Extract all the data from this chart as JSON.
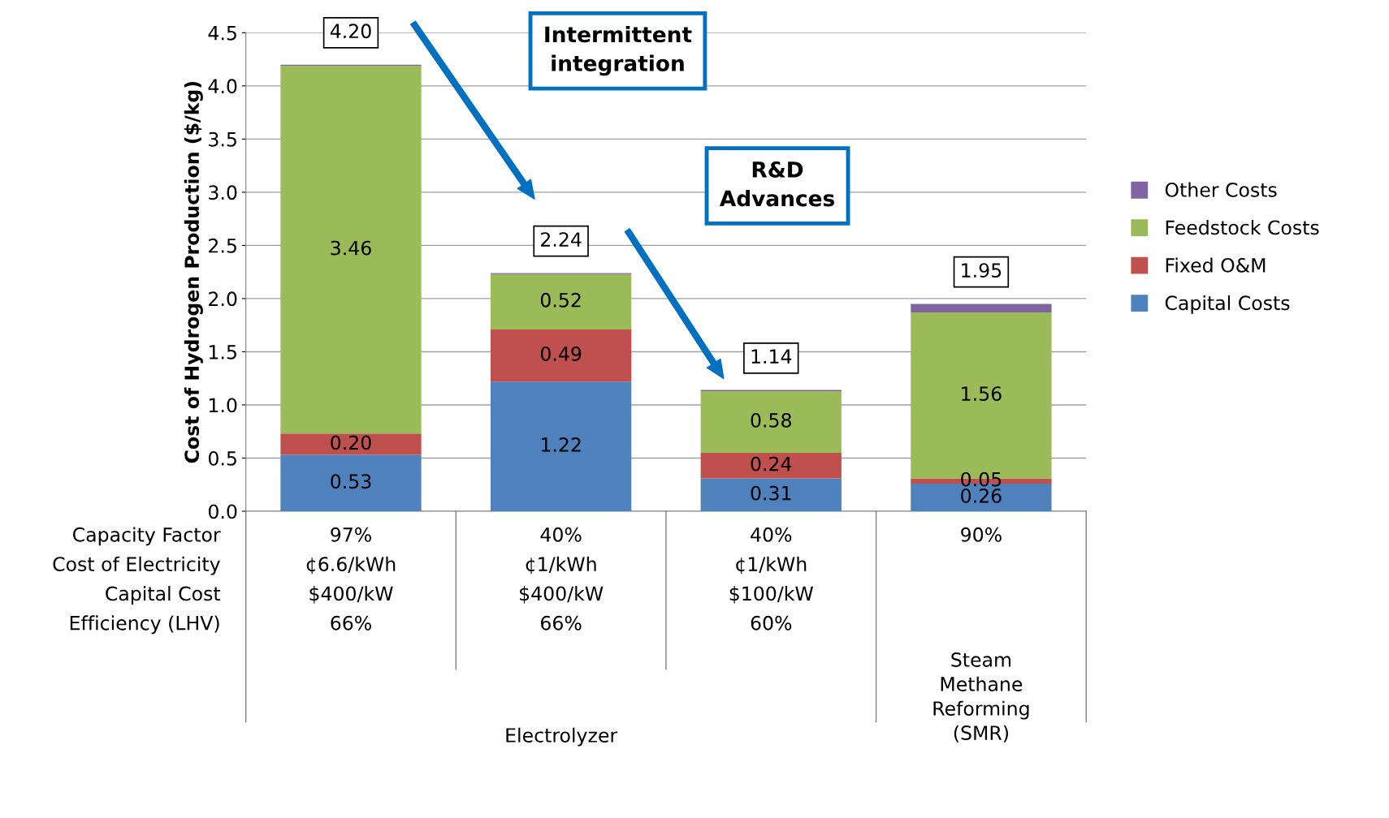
{
  "chart_data": {
    "type": "bar",
    "stacked": true,
    "ylabel": "Cost of Hydrogen Production ($/kg)",
    "categories": [
      "97%\n¢6.6/kWh\n$400/kW\n66%",
      "40%\n¢1/kWh\n$400/kW\n66%",
      "40%\n¢1/kWh\n$100/kW\n60%",
      "90%"
    ],
    "series": [
      {
        "name": "Capital Costs",
        "color": "#4f81bd",
        "values": [
          0.53,
          1.22,
          0.31,
          0.26
        ],
        "value_labels": [
          "0.53",
          "1.22",
          "0.31",
          "0.26"
        ]
      },
      {
        "name": "Fixed O&M",
        "color": "#c0504d",
        "values": [
          0.2,
          0.49,
          0.24,
          0.05
        ],
        "value_labels": [
          "0.20",
          "0.49",
          "0.24",
          "0.05"
        ]
      },
      {
        "name": "Feedstock Costs",
        "color": "#9bbb59",
        "values": [
          3.46,
          0.52,
          0.58,
          1.56
        ],
        "value_labels": [
          "3.46",
          "0.52",
          "0.58",
          "1.56"
        ]
      },
      {
        "name": "Other Costs",
        "color": "#8064a2",
        "values": [
          0.01,
          0.01,
          0.01,
          0.08
        ]
      }
    ],
    "totals": [
      "4.20",
      "2.24",
      "1.14",
      "1.95"
    ],
    "ylim": [
      0,
      4.5
    ],
    "yticks": [
      {
        "value": 0,
        "label": "0.0"
      },
      {
        "value": 0.5,
        "label": "0.5"
      },
      {
        "value": 1,
        "label": "1.0"
      },
      {
        "value": 1.5,
        "label": "1.5"
      },
      {
        "value": 2,
        "label": "2.0"
      },
      {
        "value": 2.5,
        "label": "2.5"
      },
      {
        "value": 3,
        "label": "3.0"
      },
      {
        "value": 3.5,
        "label": "3.5"
      },
      {
        "value": 4,
        "label": "4.0"
      },
      {
        "value": 4.5,
        "label": "4.5"
      }
    ],
    "grid": "y",
    "legend": "right",
    "annotations": [
      "Capacity Factor\nCost of Electricity\nCapital Cost\nEfficiency (LHV)",
      "Electrolyzer",
      "Steam\nMethane\nReforming\n(SMR)",
      "Intermittent\nintegration",
      "R&D\nAdvances"
    ]
  }
}
